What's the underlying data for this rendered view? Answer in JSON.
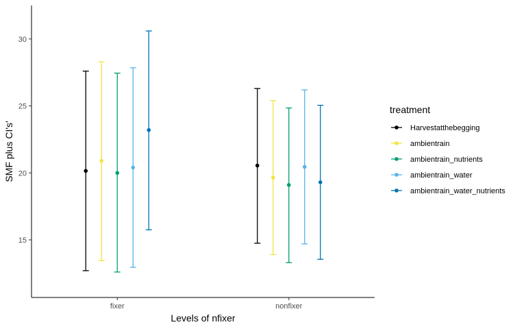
{
  "chart_data": {
    "type": "errorbar",
    "categories": [
      "fixer",
      "nonfixer"
    ],
    "xlabel": "Levels of nfixer",
    "ylabel": "SMF plus CI's'",
    "ylim": [
      10.7,
      32.5
    ],
    "yticks": [
      15,
      20,
      25,
      30
    ],
    "grid": false,
    "legend": {
      "title": "treatment",
      "position": "right"
    },
    "series": [
      {
        "name": "Harvestatthebegging",
        "color": "#000000",
        "values": [
          20.15,
          20.55
        ],
        "lower": [
          12.7,
          14.75
        ],
        "upper": [
          27.6,
          26.3
        ]
      },
      {
        "name": "ambientrain",
        "color": "#F0E442",
        "values": [
          20.9,
          19.65
        ],
        "lower": [
          13.45,
          13.9
        ],
        "upper": [
          28.3,
          25.4
        ]
      },
      {
        "name": "ambientrain_nutrients",
        "color": "#009E73",
        "values": [
          20.0,
          19.1
        ],
        "lower": [
          12.6,
          13.3
        ],
        "upper": [
          27.45,
          24.85
        ]
      },
      {
        "name": "ambientrain_water",
        "color": "#56B4E9",
        "values": [
          20.4,
          20.45
        ],
        "lower": [
          12.95,
          14.7
        ],
        "upper": [
          27.85,
          26.2
        ]
      },
      {
        "name": "ambientrain_water_nutrients",
        "color": "#0072B2",
        "values": [
          23.2,
          19.3
        ],
        "lower": [
          15.75,
          13.55
        ],
        "upper": [
          30.6,
          25.05
        ]
      }
    ]
  }
}
